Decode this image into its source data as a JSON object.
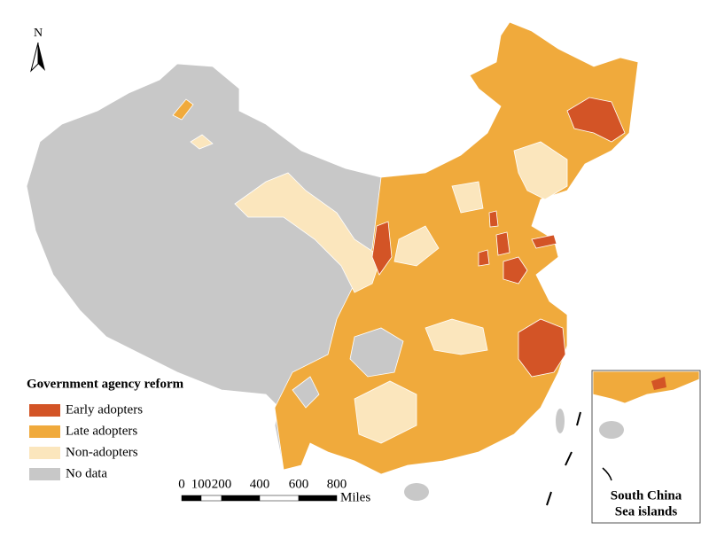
{
  "north": "N",
  "legend": {
    "title": "Government agency reform",
    "items": [
      {
        "label": "Early adopters",
        "color": "#d35426"
      },
      {
        "label": "Late adopters",
        "color": "#f0aa3c"
      },
      {
        "label": "Non-adopters",
        "color": "#fbe6bd"
      },
      {
        "label": "No data",
        "color": "#c8c8c8"
      }
    ]
  },
  "scale_bar": {
    "labels": [
      "0",
      "100",
      "200",
      "400",
      "600",
      "800"
    ],
    "unit": "Miles"
  },
  "inset": {
    "label_lines": [
      "South China",
      "Sea islands"
    ]
  }
}
